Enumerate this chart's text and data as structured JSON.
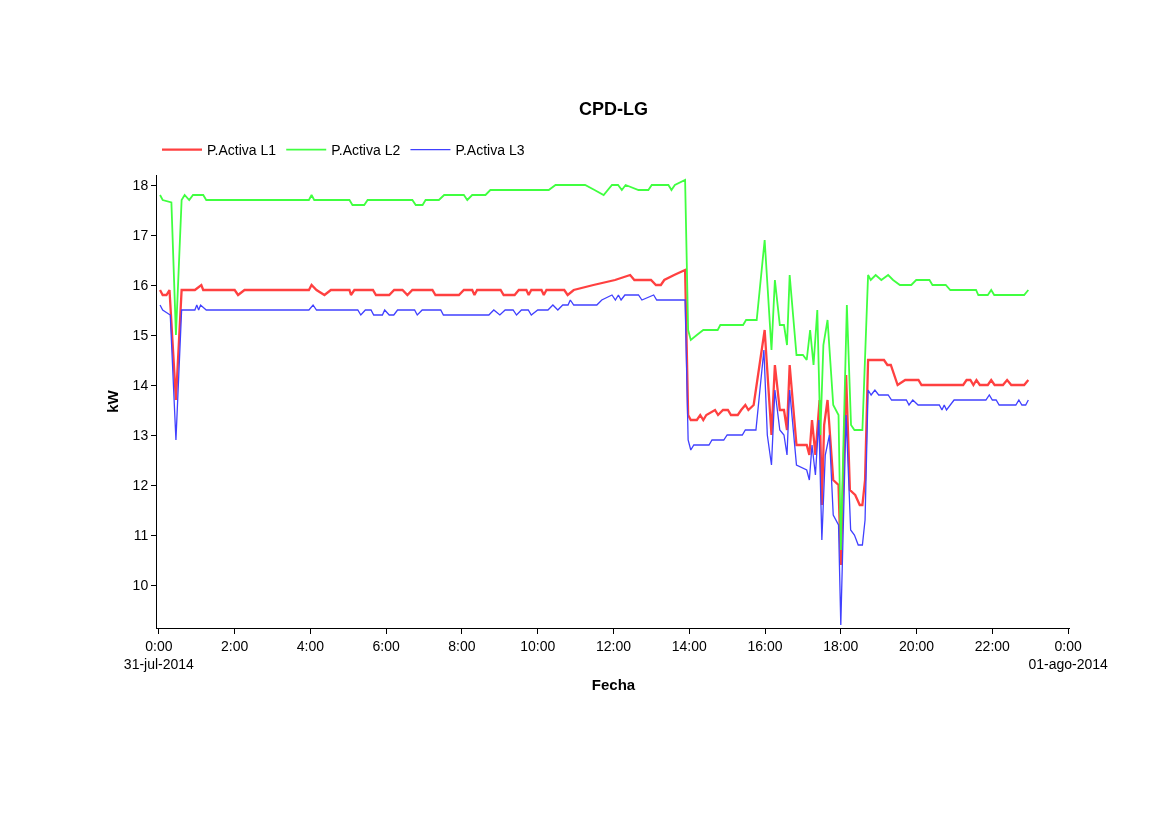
{
  "chart_data": {
    "type": "line",
    "title": "CPD-LG",
    "xlabel": "Fecha",
    "ylabel": "kW",
    "xlim": [
      -0.05,
      24.05
    ],
    "ylim": [
      9.14,
      18.2
    ],
    "xticks": [
      {
        "value": 0,
        "label": "0:00\n31-jul-2014"
      },
      {
        "value": 2,
        "label": "2:00"
      },
      {
        "value": 4,
        "label": "4:00"
      },
      {
        "value": 6,
        "label": "6:00"
      },
      {
        "value": 8,
        "label": "8:00"
      },
      {
        "value": 10,
        "label": "10:00"
      },
      {
        "value": 12,
        "label": "12:00"
      },
      {
        "value": 14,
        "label": "14:00"
      },
      {
        "value": 16,
        "label": "16:00"
      },
      {
        "value": 18,
        "label": "18:00"
      },
      {
        "value": 20,
        "label": "20:00"
      },
      {
        "value": 22,
        "label": "22:00"
      },
      {
        "value": 24,
        "label": "0:00\n01-ago-2014"
      }
    ],
    "yticks": [
      10,
      11,
      12,
      13,
      14,
      15,
      16,
      17,
      18
    ],
    "grid": false,
    "legend": "top left",
    "marker": "none",
    "line_style": "solid",
    "series": [
      {
        "name": "P.Activa L1",
        "color": "#ff4040",
        "x": [
          0.03,
          0.1,
          0.2,
          0.28,
          0.45,
          0.6,
          0.95,
          1.12,
          1.17,
          2.0,
          2.09,
          2.26,
          3.96,
          4.03,
          4.16,
          4.37,
          4.54,
          5.03,
          5.07,
          5.16,
          5.65,
          5.73,
          6.08,
          6.21,
          6.43,
          6.56,
          6.69,
          7.22,
          7.3,
          7.44,
          7.92,
          8.05,
          8.27,
          8.33,
          8.4,
          9.02,
          9.1,
          9.39,
          9.5,
          9.7,
          9.76,
          9.83,
          10.1,
          10.16,
          10.23,
          10.7,
          10.79,
          10.95,
          11.47,
          12.04,
          12.44,
          12.55,
          12.99,
          13.12,
          13.25,
          13.34,
          13.6,
          13.89,
          13.97,
          14.04,
          14.2,
          14.29,
          14.37,
          14.45,
          14.68,
          14.76,
          14.89,
          15.02,
          15.1,
          15.28,
          15.37,
          15.48,
          15.56,
          15.7,
          15.99,
          16.17,
          16.26,
          16.39,
          16.5,
          16.58,
          16.65,
          16.83,
          17.1,
          17.17,
          17.24,
          17.33,
          17.44,
          17.5,
          17.56,
          17.65,
          17.8,
          17.94,
          18.0,
          18.14,
          18.24,
          18.38,
          18.5,
          18.57,
          18.64,
          18.72,
          19.14,
          19.23,
          19.32,
          19.5,
          19.7,
          20.05,
          20.13,
          21.23,
          21.32,
          21.42,
          21.5,
          21.58,
          21.67,
          21.88,
          21.97,
          22.06,
          22.28,
          22.39,
          22.5,
          22.84,
          22.95
        ],
        "values": [
          15.9,
          15.8,
          15.8,
          15.9,
          13.7,
          15.9,
          15.9,
          16.0,
          15.9,
          15.9,
          15.8,
          15.9,
          15.9,
          16.0,
          15.9,
          15.8,
          15.9,
          15.9,
          15.8,
          15.9,
          15.9,
          15.8,
          15.8,
          15.9,
          15.9,
          15.8,
          15.9,
          15.9,
          15.8,
          15.8,
          15.8,
          15.9,
          15.9,
          15.8,
          15.9,
          15.9,
          15.8,
          15.8,
          15.9,
          15.9,
          15.8,
          15.9,
          15.9,
          15.8,
          15.9,
          15.9,
          15.8,
          15.9,
          16.0,
          16.1,
          16.2,
          16.1,
          16.1,
          16.0,
          16.0,
          16.1,
          16.2,
          16.3,
          13.4,
          13.3,
          13.3,
          13.4,
          13.3,
          13.4,
          13.5,
          13.4,
          13.5,
          13.5,
          13.4,
          13.4,
          13.5,
          13.6,
          13.5,
          13.6,
          15.1,
          13.0,
          14.4,
          13.5,
          13.5,
          13.1,
          14.4,
          12.8,
          12.8,
          12.6,
          13.3,
          12.6,
          13.7,
          11.6,
          13.2,
          13.7,
          12.1,
          12.0,
          10.4,
          14.2,
          11.9,
          11.8,
          11.6,
          11.6,
          12.1,
          14.5,
          14.5,
          14.4,
          14.4,
          14.0,
          14.1,
          14.1,
          14.0,
          14.0,
          14.1,
          14.1,
          14.0,
          14.1,
          14.0,
          14.0,
          14.1,
          14.0,
          14.0,
          14.1,
          14.0,
          14.0,
          14.1
        ]
      },
      {
        "name": "P.Activa L2",
        "color": "#40ff40",
        "x": [
          0.03,
          0.1,
          0.33,
          0.45,
          0.6,
          0.68,
          0.8,
          0.9,
          1.17,
          1.25,
          3.96,
          4.03,
          4.1,
          5.03,
          5.11,
          5.42,
          5.51,
          6.69,
          6.78,
          6.96,
          7.04,
          7.39,
          7.53,
          8.05,
          8.14,
          8.27,
          8.62,
          8.75,
          10.29,
          10.47,
          11.25,
          11.5,
          11.74,
          11.96,
          12.12,
          12.22,
          12.32,
          12.66,
          12.92,
          13.01,
          13.45,
          13.53,
          13.62,
          13.89,
          13.97,
          14.04,
          14.2,
          14.37,
          14.75,
          14.82,
          14.89,
          15.42,
          15.5,
          15.78,
          15.99,
          16.17,
          16.26,
          16.39,
          16.5,
          16.58,
          16.65,
          16.83,
          17.0,
          17.1,
          17.19,
          17.28,
          17.38,
          17.46,
          17.54,
          17.65,
          17.8,
          17.94,
          18.0,
          18.16,
          18.27,
          18.36,
          18.57,
          18.72,
          18.79,
          18.92,
          19.07,
          19.25,
          19.38,
          19.56,
          19.86,
          19.99,
          20.34,
          20.42,
          20.77,
          20.89,
          21.57,
          21.63,
          21.88,
          21.97,
          22.05,
          22.84,
          22.95
        ],
        "values": [
          17.8,
          17.7,
          17.65,
          15.0,
          17.7,
          17.8,
          17.7,
          17.8,
          17.8,
          17.7,
          17.7,
          17.8,
          17.7,
          17.7,
          17.6,
          17.6,
          17.7,
          17.7,
          17.6,
          17.6,
          17.7,
          17.7,
          17.8,
          17.8,
          17.7,
          17.8,
          17.8,
          17.9,
          17.9,
          18.0,
          18.0,
          17.9,
          17.8,
          18.0,
          18.0,
          17.9,
          18.0,
          17.9,
          17.9,
          18.0,
          18.0,
          17.9,
          18.0,
          18.1,
          15.1,
          14.9,
          15.0,
          15.1,
          15.1,
          15.2,
          15.2,
          15.2,
          15.3,
          15.3,
          16.9,
          14.7,
          16.1,
          15.2,
          15.2,
          14.8,
          16.2,
          14.6,
          14.6,
          14.5,
          15.1,
          14.4,
          15.5,
          13.0,
          14.8,
          15.3,
          13.6,
          13.4,
          10.7,
          15.6,
          13.2,
          13.1,
          13.1,
          16.2,
          16.1,
          16.2,
          16.1,
          16.2,
          16.1,
          16.0,
          16.0,
          16.1,
          16.1,
          16.0,
          16.0,
          15.9,
          15.9,
          15.8,
          15.8,
          15.9,
          15.8,
          15.8,
          15.9
        ]
      },
      {
        "name": "P.Activa L3",
        "color": "#4040ff",
        "x": [
          0.03,
          0.1,
          0.3,
          0.45,
          0.6,
          0.95,
          1.0,
          1.05,
          1.1,
          1.25,
          3.96,
          4.07,
          4.16,
          5.25,
          5.33,
          5.45,
          5.6,
          5.67,
          5.9,
          5.96,
          6.08,
          6.2,
          6.3,
          6.75,
          6.82,
          6.95,
          7.44,
          7.51,
          8.71,
          8.84,
          9.0,
          9.14,
          9.35,
          9.44,
          9.57,
          9.75,
          9.83,
          10.0,
          10.27,
          10.4,
          10.53,
          10.66,
          10.8,
          10.86,
          10.95,
          11.56,
          11.69,
          11.96,
          12.05,
          12.13,
          12.2,
          12.3,
          12.66,
          12.75,
          13.06,
          13.14,
          13.89,
          13.97,
          14.04,
          14.12,
          14.52,
          14.6,
          14.91,
          15.0,
          15.4,
          15.48,
          15.76,
          15.97,
          16.06,
          16.17,
          16.26,
          16.39,
          16.5,
          16.58,
          16.65,
          16.83,
          17.1,
          17.17,
          17.24,
          17.33,
          17.42,
          17.5,
          17.59,
          17.7,
          17.8,
          17.94,
          18.0,
          18.14,
          18.26,
          18.36,
          18.46,
          18.57,
          18.64,
          18.72,
          18.8,
          18.9,
          19.0,
          19.25,
          19.34,
          19.73,
          19.8,
          19.9,
          20.04,
          20.6,
          20.67,
          20.73,
          20.79,
          20.99,
          21.83,
          21.92,
          22.0,
          22.1,
          22.18,
          22.62,
          22.7,
          22.78,
          22.88,
          22.95
        ],
        "values": [
          15.6,
          15.5,
          15.4,
          12.9,
          15.5,
          15.5,
          15.6,
          15.5,
          15.6,
          15.5,
          15.5,
          15.6,
          15.5,
          15.5,
          15.4,
          15.5,
          15.5,
          15.4,
          15.4,
          15.5,
          15.4,
          15.4,
          15.5,
          15.5,
          15.4,
          15.5,
          15.5,
          15.4,
          15.4,
          15.5,
          15.4,
          15.5,
          15.5,
          15.4,
          15.5,
          15.5,
          15.4,
          15.5,
          15.5,
          15.6,
          15.5,
          15.6,
          15.6,
          15.7,
          15.6,
          15.6,
          15.7,
          15.8,
          15.7,
          15.8,
          15.7,
          15.8,
          15.8,
          15.7,
          15.8,
          15.7,
          15.7,
          12.9,
          12.7,
          12.8,
          12.8,
          12.9,
          12.9,
          13.0,
          13.0,
          13.1,
          13.1,
          14.7,
          13.0,
          12.4,
          13.9,
          13.1,
          13.0,
          12.6,
          13.9,
          12.4,
          12.3,
          12.1,
          12.8,
          12.2,
          13.3,
          10.9,
          12.6,
          13.0,
          11.4,
          11.2,
          9.2,
          13.4,
          11.1,
          11.0,
          10.8,
          10.8,
          11.3,
          13.9,
          13.8,
          13.9,
          13.8,
          13.8,
          13.7,
          13.7,
          13.6,
          13.7,
          13.6,
          13.6,
          13.5,
          13.6,
          13.5,
          13.7,
          13.7,
          13.8,
          13.7,
          13.7,
          13.6,
          13.6,
          13.7,
          13.6,
          13.6,
          13.7
        ]
      }
    ]
  }
}
